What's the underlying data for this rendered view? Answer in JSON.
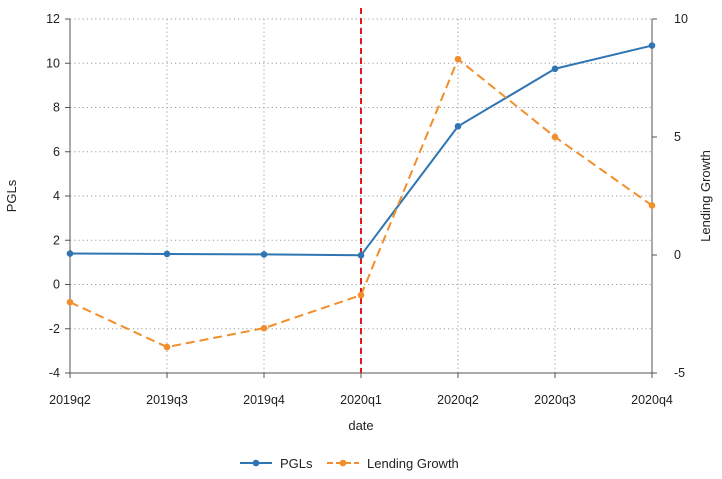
{
  "chart_data": {
    "type": "line",
    "title": "",
    "xlabel": "date",
    "ylabel_left": "PGLs",
    "ylabel_right": "Lending Growth",
    "categories": [
      "2019q2",
      "2019q3",
      "2019q4",
      "2020q1",
      "2020q2",
      "2020q3",
      "2020q4"
    ],
    "highlight_category": "2020q1",
    "y_left": {
      "lim": [
        -4,
        12
      ],
      "ticks": [
        "-4",
        "-2",
        "0",
        "2",
        "4",
        "6",
        "8",
        "10",
        "12"
      ]
    },
    "y_right": {
      "lim": [
        -5,
        10
      ],
      "ticks": [
        "-5",
        "0",
        "5",
        "10"
      ]
    },
    "series": [
      {
        "name": "PGLs",
        "axis": "left",
        "style": "solid",
        "color": "#2e75b2",
        "values": [
          1.4,
          1.38,
          1.36,
          1.32,
          7.15,
          9.75,
          10.8
        ]
      },
      {
        "name": "Lending Growth",
        "axis": "right",
        "style": "dashed",
        "color": "#f28e2b",
        "values": [
          -2.0,
          -3.9,
          -3.1,
          -1.7,
          8.3,
          5.0,
          2.1
        ]
      }
    ],
    "event_line": {
      "category": "2020q1",
      "color": "#e31a1c",
      "style": "dashed"
    },
    "grid": true,
    "legend_position": "bottom"
  }
}
